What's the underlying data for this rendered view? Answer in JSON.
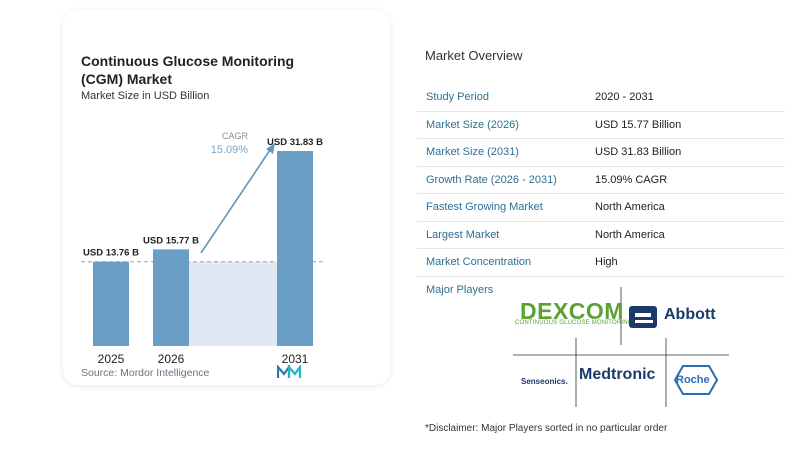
{
  "chart": {
    "title": "Continuous Glucose Monitoring (CGM) Market",
    "subtitle": "Market Size in USD Billion",
    "source": "Source: Mordor Intelligence",
    "cagr_label": "CAGR",
    "cagr_value": "15.09%",
    "colors": {
      "bar": "#6a9ec4",
      "band": "#dfe9f3",
      "arrow": "#5f97be",
      "text": "#7aa6c8"
    }
  },
  "chart_data": {
    "type": "bar",
    "categories": [
      "2025",
      "2026",
      "2031"
    ],
    "values": [
      13.76,
      15.77,
      31.83
    ],
    "value_labels": [
      "USD 13.76 B",
      "USD 15.77 B",
      "USD 31.83 B"
    ],
    "title": "Continuous Glucose Monitoring (CGM) Market",
    "subtitle": "Market Size in USD Billion",
    "ylabel": "",
    "xlabel": "",
    "ylim": [
      0,
      32
    ],
    "grid": false,
    "annotation": {
      "label": "CAGR",
      "value": "15.09%"
    }
  },
  "overview": {
    "title": "Market Overview",
    "rows": [
      {
        "label": "Study Period",
        "value": "2020 - 2031"
      },
      {
        "label": "Market Size (2026)",
        "value": "USD 15.77 Billion"
      },
      {
        "label": "Market Size (2031)",
        "value": "USD 31.83 Billion"
      },
      {
        "label": "Growth Rate (2026 - 2031)",
        "value": "15.09% CAGR"
      },
      {
        "label": "Fastest Growing Market",
        "value": "North America"
      },
      {
        "label": "Largest Market",
        "value": "North America"
      },
      {
        "label": "Market Concentration",
        "value": "High"
      }
    ]
  },
  "players": {
    "label": "Major Players",
    "logos": {
      "dexcom": "DEXCOM",
      "dexcom_tagline": "CONTINUOUS GLUCOSE MONITORING",
      "abbott": "Abbott",
      "medtronic": "Medtronic",
      "senseonics": "Senseonics.",
      "roche": "Roche"
    }
  },
  "disclaimer": "*Disclaimer: Major Players sorted in no particular order"
}
